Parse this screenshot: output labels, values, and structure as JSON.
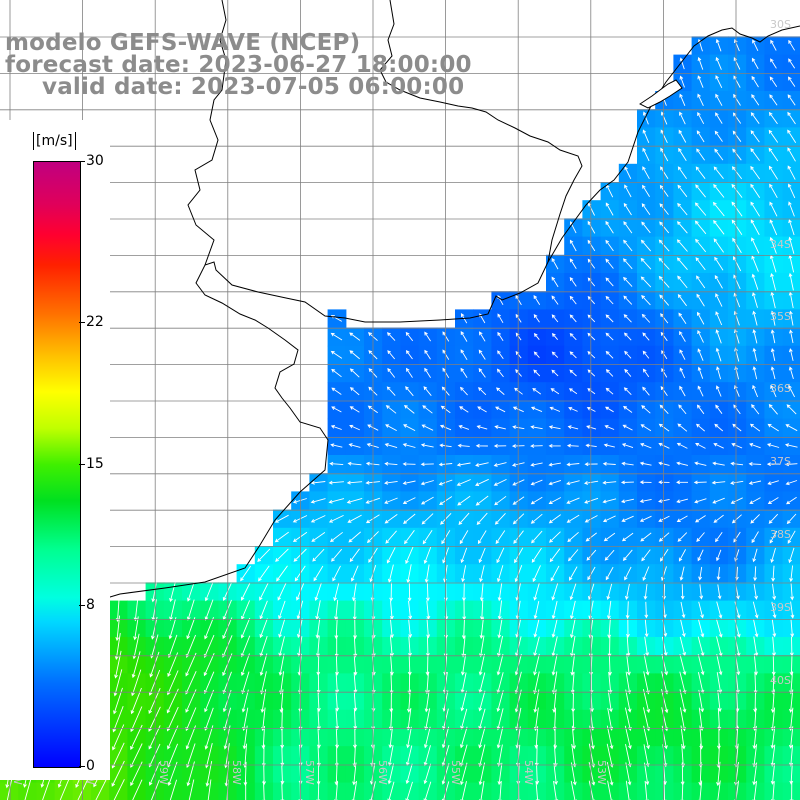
{
  "title": {
    "line1": "modelo GEFS-WAVE (NCEP)",
    "line2": "forecast date: 2023-06-27 18:00:00",
    "line3": "valid date: 2023-07-05 06:00:00"
  },
  "legend": {
    "unit": "[m/s]",
    "ticks": [
      {
        "label": "30",
        "value": 30
      },
      {
        "label": "22",
        "value": 22
      },
      {
        "label": "15",
        "value": 15
      },
      {
        "label": "8",
        "value": 8
      },
      {
        "label": "0",
        "value": 0
      }
    ],
    "range": [
      0,
      30
    ]
  },
  "map": {
    "variable": "wind speed and direction",
    "lat_labels": [
      "30S",
      "34S",
      "35S",
      "36S",
      "37S",
      "38S",
      "39S",
      "40S"
    ],
    "lon_labels": [
      "61W",
      "60W",
      "59W",
      "58W",
      "57W",
      "56W",
      "55W",
      "54W",
      "53W"
    ],
    "colors": {
      "ocean_low": "#0033ee",
      "ocean_mid": "#0a78ff",
      "ocean_cyan": "#00e8ff",
      "ocean_green": "#00e040",
      "land": "#ffffff",
      "grid": "#808080",
      "coast": "#000000",
      "arrow": "#ffffff"
    }
  }
}
